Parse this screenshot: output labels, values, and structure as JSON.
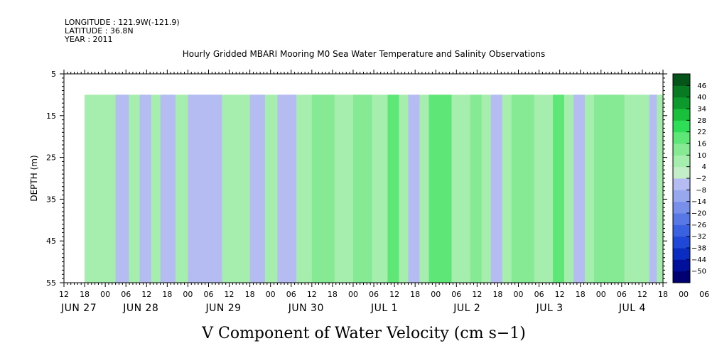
{
  "header": {
    "longitude": "LONGITUDE : 121.9W(-121.9)",
    "latitude": "LATITUDE : 36.8N",
    "year": "YEAR : 2011"
  },
  "chart_data": {
    "type": "heatmap",
    "title": "Hourly Gridded MBARI Mooring M0 Sea Water Temperature and Salinity Observations",
    "xlabel_bottom": "V Component of Water Velocity (cm s−1)",
    "ylabel": "DEPTH (m)",
    "ylim": [
      5,
      55
    ],
    "y_inverted": true,
    "y_ticks": [
      5,
      15,
      25,
      35,
      45,
      55
    ],
    "data_depth_range": [
      10,
      55
    ],
    "x_unit": "hours since 2011-06-27 12:00",
    "xlim": [
      0,
      174
    ],
    "data_x_start": 6,
    "x_tick_labels": [
      "12",
      "18",
      "00",
      "06",
      "12",
      "18",
      "00",
      "06",
      "12",
      "18",
      "00",
      "06",
      "12",
      "18",
      "00",
      "06",
      "12",
      "18",
      "00",
      "06",
      "12",
      "18",
      "00",
      "06",
      "12",
      "18",
      "00",
      "06",
      "12",
      "18",
      "00",
      "06",
      "12"
    ],
    "day_labels": [
      {
        "label": "JUN 27",
        "hour": 0
      },
      {
        "label": "JUN 28",
        "hour": 18
      },
      {
        "label": "JUN 29",
        "hour": 42
      },
      {
        "label": "JUN 30",
        "hour": 66
      },
      {
        "label": "JUL  1",
        "hour": 90
      },
      {
        "label": "JUL  2",
        "hour": 114
      },
      {
        "label": "JUL  3",
        "hour": 138
      },
      {
        "label": "JUL  4",
        "hour": 162
      }
    ],
    "colorbar": {
      "levels": [
        -50,
        -44,
        -38,
        -32,
        -26,
        -20,
        -14,
        -8,
        -2,
        4,
        10,
        16,
        22,
        28,
        34,
        40,
        46
      ],
      "labels": [
        "46",
        "40",
        "34",
        "28",
        "22",
        "16",
        "10",
        "4",
        "−2",
        "−8",
        "−14",
        "−20",
        "−26",
        "−32",
        "−38",
        "−44",
        "−50"
      ],
      "colors_low_to_high": [
        "#000070",
        "#00109a",
        "#0a2cc0",
        "#2048d6",
        "#3a62e0",
        "#5878e6",
        "#7890ea",
        "#98a8ee",
        "#b4bcf2",
        "#c4eec8",
        "#a6eeae",
        "#86ea94",
        "#5ee676",
        "#2ede56",
        "#18c03c",
        "#0c9a2c",
        "#087a22",
        "#05551a"
      ]
    },
    "bands": [
      {
        "hour": 15,
        "value": -4
      },
      {
        "hour": 22,
        "value": -3
      },
      {
        "hour": 28,
        "value": -5
      },
      {
        "hour": 36,
        "value": -6
      },
      {
        "hour": 54,
        "value": -4
      },
      {
        "hour": 62,
        "value": -5
      },
      {
        "hour": 72,
        "value": 14
      },
      {
        "hour": 84,
        "value": 12
      },
      {
        "hour": 94,
        "value": 18
      },
      {
        "hour": 100,
        "value": -6
      },
      {
        "hour": 106,
        "value": 16
      },
      {
        "hour": 118,
        "value": 14
      },
      {
        "hour": 124,
        "value": -6
      },
      {
        "hour": 130,
        "value": 14
      },
      {
        "hour": 142,
        "value": 16
      },
      {
        "hour": 148,
        "value": -5
      },
      {
        "hour": 154,
        "value": 12
      },
      {
        "hour": 170,
        "value": -7
      }
    ]
  }
}
